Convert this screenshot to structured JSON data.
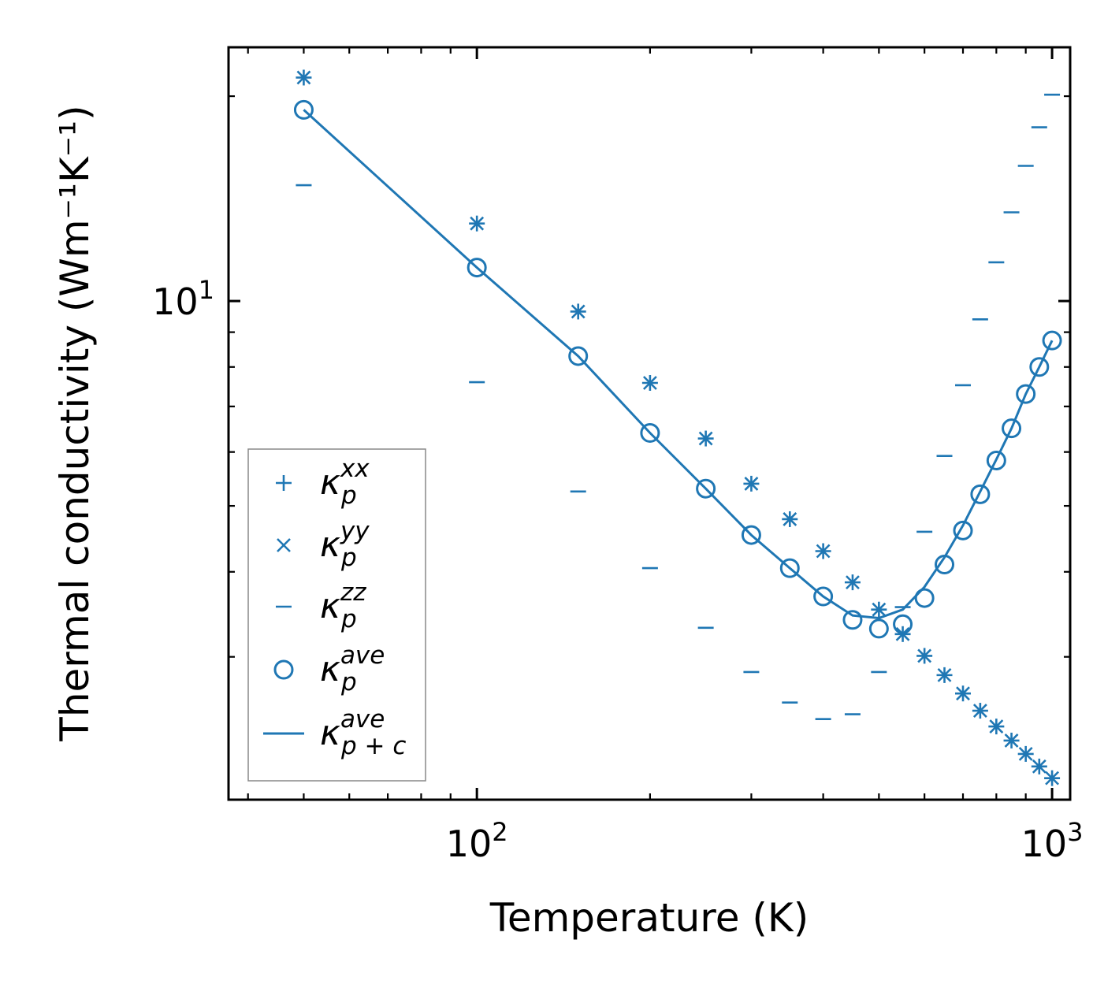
{
  "chart_data": {
    "type": "scatter",
    "title": "",
    "xlabel": "Temperature (K)",
    "ylabel": "Thermal conductivity (Wm⁻¹K⁻¹)",
    "xscale": "log",
    "yscale": "log",
    "xlim": [
      37,
      1075
    ],
    "ylim": [
      1.85,
      23.6
    ],
    "x_major_ticks": [
      {
        "value": 100,
        "base": "10",
        "exp": "2"
      },
      {
        "value": 1000,
        "base": "10",
        "exp": "3"
      }
    ],
    "y_major_ticks": [
      {
        "value": 10,
        "base": "10",
        "exp": "1"
      }
    ],
    "x_minor_ticks": [
      40,
      50,
      60,
      70,
      80,
      90,
      200,
      300,
      400,
      500,
      600,
      700,
      800,
      900
    ],
    "y_minor_ticks": [
      3,
      4,
      5,
      6,
      7,
      8,
      9,
      20
    ],
    "color": "#1f77b4",
    "legend_position": "lower left",
    "x": [
      50,
      100,
      150,
      200,
      250,
      300,
      350,
      400,
      450,
      500,
      550,
      600,
      650,
      700,
      750,
      800,
      850,
      900,
      950,
      1000
    ],
    "series": [
      {
        "name": "κ_p^xx",
        "label_base": "κ",
        "label_sub": "p",
        "label_sup": "xx",
        "marker": "+",
        "values": [
          21.3,
          13.0,
          9.65,
          7.58,
          6.28,
          5.39,
          4.78,
          4.29,
          3.86,
          3.52,
          3.24,
          3.01,
          2.82,
          2.65,
          2.5,
          2.37,
          2.26,
          2.16,
          2.07,
          1.99
        ]
      },
      {
        "name": "κ_p^yy",
        "label_base": "κ",
        "label_sub": "p",
        "label_sup": "yy",
        "marker": "x",
        "values": [
          21.3,
          13.0,
          9.65,
          7.58,
          6.28,
          5.39,
          4.78,
          4.29,
          3.86,
          3.52,
          3.24,
          3.01,
          2.82,
          2.65,
          2.5,
          2.37,
          2.26,
          2.16,
          2.07,
          1.99
        ]
      },
      {
        "name": "κ_p^zz",
        "label_base": "κ",
        "label_sub": "p",
        "label_sup": "zz",
        "marker": "_",
        "values": [
          14.8,
          7.6,
          5.25,
          4.05,
          3.31,
          2.85,
          2.57,
          2.43,
          2.47,
          2.85,
          3.55,
          4.58,
          5.92,
          7.52,
          9.4,
          11.4,
          13.5,
          15.8,
          18.0,
          20.1
        ]
      },
      {
        "name": "κ_p^ave",
        "label_base": "κ",
        "label_sub": "p",
        "label_sup": "ave",
        "marker": "o",
        "values": [
          19.1,
          11.2,
          8.3,
          6.4,
          5.3,
          4.53,
          4.05,
          3.68,
          3.4,
          3.3,
          3.35,
          3.66,
          4.1,
          4.6,
          5.2,
          5.83,
          6.5,
          7.3,
          8.0,
          8.75
        ]
      },
      {
        "name": "κ_p+c^ave",
        "label_base": "κ",
        "label_sub": "p + c",
        "label_sup": "ave",
        "marker": "line",
        "values": [
          19.1,
          11.2,
          8.3,
          6.4,
          5.3,
          4.53,
          4.05,
          3.68,
          3.45,
          3.42,
          3.52,
          3.8,
          4.2,
          4.68,
          5.25,
          5.85,
          6.5,
          7.3,
          8.0,
          8.75
        ]
      }
    ]
  }
}
